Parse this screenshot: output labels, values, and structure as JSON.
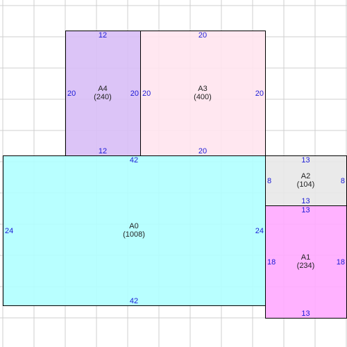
{
  "colors": {
    "grid": "#cfcfcf",
    "outline": "#000000",
    "dimension_text": "#1a1ad6",
    "label_text": "#222222"
  },
  "rectangles": [
    {
      "id": "A0",
      "name": "A0",
      "area": "(1008)",
      "width": 42,
      "height": 24,
      "width_label": "42",
      "height_label": "24",
      "fill": "#b0ffff"
    },
    {
      "id": "A1",
      "name": "A1",
      "area": "(234)",
      "width": 13,
      "height": 18,
      "width_label": "13",
      "height_label": "18",
      "fill": "#ffaaff"
    },
    {
      "id": "A2",
      "name": "A2",
      "area": "(104)",
      "width": 13,
      "height": 8,
      "width_label": "13",
      "height_label": "8",
      "fill": "#e8e8e8"
    },
    {
      "id": "A3",
      "name": "A3",
      "area": "(400)",
      "width": 20,
      "height": 20,
      "width_label": "20",
      "height_label": "20",
      "fill": "#ffe4ee"
    },
    {
      "id": "A4",
      "name": "A4",
      "area": "(240)",
      "width": 12,
      "height": 20,
      "width_label": "12",
      "height_label": "20",
      "fill": "#d8bef6"
    }
  ]
}
